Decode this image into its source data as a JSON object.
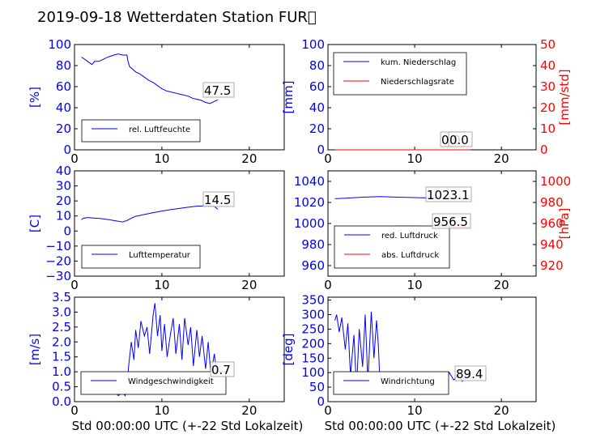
{
  "chart_data": {
    "title": "2019-09-18 Wetterdaten Station FUR\u0000",
    "xlabel": "Std 00:00:00 UTC (+-22 Std Lokalzeit)",
    "xlim": [
      0,
      24
    ],
    "xticks": [
      "0",
      "10",
      "20"
    ],
    "panels": [
      {
        "id": "humidity",
        "type": "line",
        "ylabel": "[%]",
        "ylim": [
          0,
          100
        ],
        "yticks": [
          "0",
          "20",
          "40",
          "60",
          "80",
          "100"
        ],
        "legend": [
          {
            "name": "rel. Luftfeuchte",
            "color": "#0000ff"
          }
        ],
        "value_labels": [
          "47.5"
        ],
        "series": [
          {
            "name": "rel. Luftfeuchte",
            "color": "#0000ff",
            "x": [
              0.8,
              1,
              1.5,
              2,
              2.3,
              2.8,
              3.3,
              3.8,
              4.5,
              5,
              5.5,
              6,
              6.1,
              6.3,
              6.6,
              7,
              7.5,
              8,
              8.5,
              9,
              9.5,
              10,
              10.5,
              11,
              11.5,
              12,
              12.5,
              13,
              13.5,
              14,
              14.5,
              15,
              15.5,
              16,
              16.4
            ],
            "y": [
              88,
              87,
              84,
              81,
              84,
              84,
              86,
              88,
              90,
              91,
              90,
              90,
              85,
              79,
              77,
              74,
              72,
              69,
              66,
              64,
              61,
              58,
              56,
              55,
              54,
              53,
              52,
              51,
              49,
              48,
              47,
              45,
              44,
              46,
              47.5
            ]
          }
        ]
      },
      {
        "id": "precipitation",
        "type": "line",
        "ylabel": "[mm]",
        "ylim": [
          0,
          100
        ],
        "yticks": [
          "0",
          "20",
          "40",
          "60",
          "80",
          "100"
        ],
        "y2label": "[mm/std]",
        "y2lim": [
          0,
          50
        ],
        "y2ticks": [
          "0",
          "10",
          "20",
          "30",
          "40",
          "50"
        ],
        "legend": [
          {
            "name": "kum. Niederschlag",
            "color": "#0000ff"
          },
          {
            "name": "Niederschlagsrate",
            "color": "#ff0000"
          }
        ],
        "value_labels": [
          "0.0",
          "0.0"
        ],
        "series": [
          {
            "name": "kum. Niederschlag",
            "color": "#0000ff",
            "axis": "left",
            "x": [
              0.8,
              16.4
            ],
            "y": [
              0,
              0
            ]
          },
          {
            "name": "Niederschlagsrate",
            "color": "#ff0000",
            "axis": "right",
            "x": [
              0.8,
              16.4
            ],
            "y": [
              0,
              0
            ]
          }
        ]
      },
      {
        "id": "temperature",
        "type": "line",
        "ylabel": "[C]",
        "ylim": [
          -30,
          40
        ],
        "yticks": [
          "−30",
          "−20",
          "−10",
          "0",
          "10",
          "20",
          "30",
          "40"
        ],
        "legend": [
          {
            "name": "Lufttemperatur",
            "color": "#0000ff"
          }
        ],
        "value_labels": [
          "14.5"
        ],
        "series": [
          {
            "name": "Lufttemperatur",
            "color": "#0000ff",
            "x": [
              0.8,
              1,
              1.5,
              2,
              3,
              4,
              5,
              5.5,
              6,
              6.5,
              7,
              8,
              9,
              10,
              11,
              12,
              13,
              14,
              15,
              16,
              16.4
            ],
            "y": [
              7.5,
              8.5,
              9,
              8.7,
              8.3,
              7.5,
              6.5,
              6,
              7,
              8.5,
              9.8,
              11,
              12.2,
              13.3,
              14.2,
              15,
              15.8,
              16.5,
              16.8,
              16.5,
              14.5
            ]
          }
        ]
      },
      {
        "id": "pressure",
        "type": "line",
        "ylabel": "",
        "ylim": [
          950,
          1050
        ],
        "yticks": [
          "960",
          "980",
          "1000",
          "1020",
          "1040"
        ],
        "y2label": "[hPa]",
        "y2lim": [
          910,
          1010
        ],
        "y2ticks": [
          "920",
          "940",
          "960",
          "980",
          "1000"
        ],
        "legend": [
          {
            "name": "red. Luftdruck",
            "color": "#0000ff"
          },
          {
            "name": "abs. Luftdruck",
            "color": "#ff0000"
          }
        ],
        "value_labels": [
          "1023.1",
          "956.5"
        ],
        "series": [
          {
            "name": "red. Luftdruck",
            "color": "#0000ff",
            "axis": "left",
            "x": [
              0.8,
              2,
              4,
              6,
              8,
              10,
              12,
              14,
              16.4
            ],
            "y": [
              1023.5,
              1024,
              1025,
              1025.5,
              1025,
              1024.6,
              1024.2,
              1023.6,
              1023.1
            ]
          },
          {
            "name": "abs. Luftdruck",
            "color": "#ff0000",
            "axis": "right",
            "x": [
              0.8,
              2,
              4,
              6,
              8,
              10,
              12,
              14,
              16.4
            ],
            "y": [
              955.5,
              956,
              956.5,
              957,
              957.5,
              957.5,
              957.2,
              956.8,
              956.5
            ]
          }
        ]
      },
      {
        "id": "wind_speed",
        "type": "line",
        "ylabel": "[m/s]",
        "ylim": [
          0,
          3.5
        ],
        "yticks": [
          "0.0",
          "0.5",
          "1.0",
          "1.5",
          "2.0",
          "2.5",
          "3.0",
          "3.5"
        ],
        "legend": [
          {
            "name": "Windgeschwindigkeit",
            "color": "#0000ff"
          }
        ],
        "value_labels": [
          "0.7"
        ],
        "series": [
          {
            "name": "Windgeschwindigkeit",
            "color": "#0000ff",
            "x": [
              0.8,
              1,
              1.2,
              1.5,
              2,
              2.5,
              3,
              3.5,
              4,
              4.5,
              5,
              5.5,
              5.8,
              6,
              6.2,
              6.5,
              6.8,
              7,
              7.3,
              7.6,
              8,
              8.3,
              8.6,
              9,
              9.2,
              9.5,
              9.8,
              10,
              10.3,
              10.6,
              11,
              11.3,
              11.6,
              12,
              12.3,
              12.6,
              13,
              13.3,
              13.6,
              14,
              14.3,
              14.6,
              15,
              15.3,
              15.6,
              16,
              16.4
            ],
            "y": [
              0.9,
              0.6,
              0.3,
              0.5,
              0.3,
              0.5,
              0.4,
              0.6,
              0.3,
              0.4,
              0.2,
              0.3,
              0.2,
              0.5,
              1.2,
              2.0,
              1.4,
              2.4,
              1.8,
              2.7,
              2.2,
              2.5,
              1.6,
              2.9,
              3.3,
              2.2,
              2.9,
              1.7,
              2.6,
              1.5,
              2.3,
              2.8,
              1.6,
              2.6,
              1.4,
              2.8,
              1.9,
              2.5,
              1.2,
              2.4,
              1.5,
              2.2,
              1.1,
              2.0,
              0.9,
              1.6,
              0.7
            ]
          }
        ]
      },
      {
        "id": "wind_direction",
        "type": "line",
        "ylabel": "[deg]",
        "ylim": [
          0,
          360
        ],
        "yticks": [
          "0",
          "50",
          "100",
          "150",
          "200",
          "250",
          "300",
          "350"
        ],
        "legend": [
          {
            "name": "Windrichtung",
            "color": "#0000ff"
          }
        ],
        "value_labels": [
          "89.4"
        ],
        "series": [
          {
            "name": "Windrichtung",
            "color": "#0000ff",
            "x": [
              0.8,
              1,
              1.3,
              1.6,
              2,
              2.3,
              2.6,
              3,
              3.3,
              3.6,
              4,
              4.3,
              4.6,
              5,
              5.3,
              5.6,
              5.8,
              6,
              6.3,
              6.6,
              7,
              7.5,
              8,
              8.5,
              9,
              9.5,
              10,
              10.5,
              11,
              11.5,
              12,
              12.5,
              13,
              13.5,
              14,
              14.5,
              15,
              15.5,
              16,
              16.4
            ],
            "y": [
              280,
              300,
              240,
              290,
              180,
              270,
              90,
              230,
              40,
              250,
              120,
              300,
              70,
              310,
              150,
              280,
              200,
              60,
              100,
              40,
              80,
              60,
              90,
              70,
              95,
              65,
              100,
              75,
              90,
              70,
              100,
              80,
              95,
              70,
              100,
              75,
              90,
              70,
              95,
              89.4
            ]
          }
        ]
      }
    ]
  }
}
